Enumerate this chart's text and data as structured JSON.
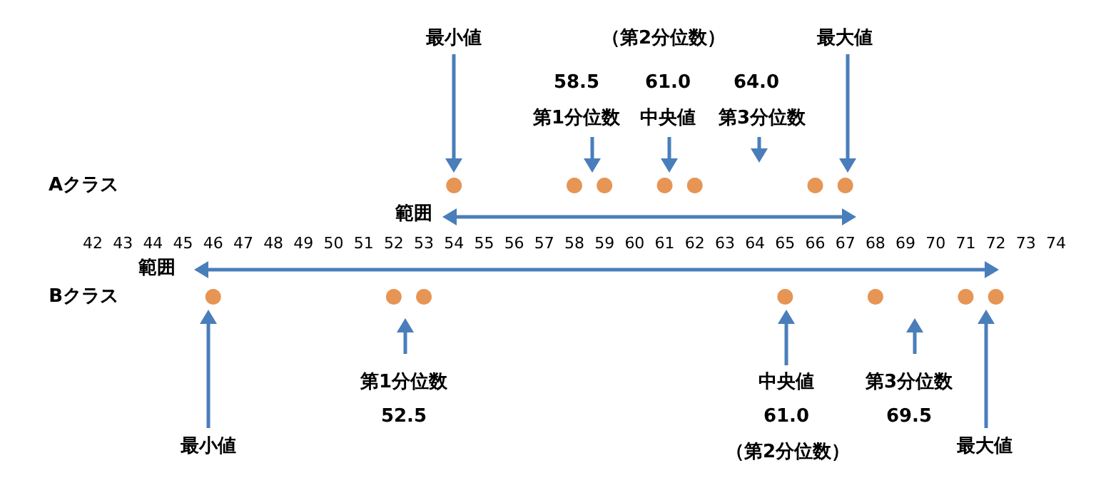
{
  "chart_data": {
    "type": "scatter",
    "orientation": "horizontal",
    "categories": [
      "Aクラス",
      "Bクラス"
    ],
    "series": [
      {
        "color": "#e07b2a",
        "values": [
          54,
          46
        ]
      },
      {
        "color": "#e07b2a",
        "values": [
          58,
          52
        ]
      },
      {
        "color": "#e07b2a",
        "values": [
          59,
          53
        ]
      },
      {
        "color": "#e07b2a",
        "values": [
          61,
          65
        ]
      },
      {
        "color": "#e07b2a",
        "values": [
          62,
          68
        ]
      },
      {
        "color": "#e07b2a",
        "values": [
          66,
          71
        ]
      },
      {
        "color": "#e07b2a",
        "values": [
          67,
          72
        ]
      }
    ],
    "marker": "circle",
    "xlim": [
      42,
      74
    ],
    "xticks": [
      42,
      43,
      44,
      45,
      46,
      47,
      48,
      49,
      50,
      51,
      52,
      53,
      54,
      55,
      56,
      57,
      58,
      59,
      60,
      61,
      62,
      63,
      64,
      65,
      66,
      67,
      68,
      69,
      70,
      71,
      72,
      73,
      74
    ],
    "annotations": [
      "最小値",
      "第1分位数",
      "58.5",
      "中央値",
      "61.0",
      "（第2分位数）",
      "第3分位数",
      "64.0",
      "最大値",
      "範囲",
      "最小値",
      "第1分位数",
      "52.5",
      "中央値",
      "61.0",
      "（第2分位数）",
      "第3分位数",
      "69.5",
      "最大値",
      "範囲"
    ]
  }
}
